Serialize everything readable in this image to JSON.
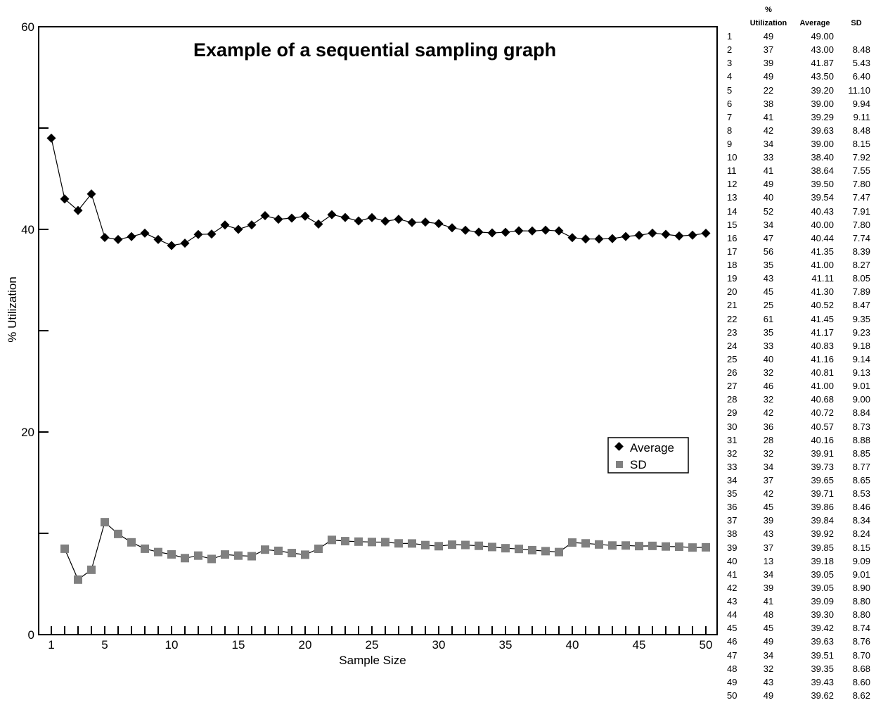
{
  "chart_data": {
    "type": "line",
    "title": "Example of a sequential sampling graph",
    "xlabel": "Sample Size",
    "ylabel": "% Utilization",
    "xlim": [
      1,
      50
    ],
    "ylim": [
      0,
      60
    ],
    "x_ticks": [
      1,
      5,
      10,
      15,
      20,
      25,
      30,
      35,
      40,
      45,
      50
    ],
    "y_ticks": [
      0,
      20,
      40,
      60
    ],
    "grid": false,
    "legend": "center-right",
    "series": [
      {
        "name": "Average",
        "marker": "diamond",
        "color": "#000000",
        "x": [
          1,
          2,
          3,
          4,
          5,
          6,
          7,
          8,
          9,
          10,
          11,
          12,
          13,
          14,
          15,
          16,
          17,
          18,
          19,
          20,
          21,
          22,
          23,
          24,
          25,
          26,
          27,
          28,
          29,
          30,
          31,
          32,
          33,
          34,
          35,
          36,
          37,
          38,
          39,
          40,
          41,
          42,
          43,
          44,
          45,
          46,
          47,
          48,
          49,
          50
        ],
        "values": [
          49.0,
          43.0,
          41.87,
          43.5,
          39.2,
          39.0,
          39.29,
          39.63,
          39.0,
          38.4,
          38.64,
          39.5,
          39.54,
          40.43,
          40.0,
          40.44,
          41.35,
          41.0,
          41.11,
          41.3,
          40.52,
          41.45,
          41.17,
          40.83,
          41.16,
          40.81,
          41.0,
          40.68,
          40.72,
          40.57,
          40.16,
          39.91,
          39.73,
          39.65,
          39.71,
          39.86,
          39.84,
          39.92,
          39.85,
          39.18,
          39.05,
          39.05,
          39.09,
          39.3,
          39.42,
          39.63,
          39.51,
          39.35,
          39.43,
          39.62
        ]
      },
      {
        "name": "SD",
        "marker": "square",
        "color": "#808080",
        "x": [
          2,
          3,
          4,
          5,
          6,
          7,
          8,
          9,
          10,
          11,
          12,
          13,
          14,
          15,
          16,
          17,
          18,
          19,
          20,
          21,
          22,
          23,
          24,
          25,
          26,
          27,
          28,
          29,
          30,
          31,
          32,
          33,
          34,
          35,
          36,
          37,
          38,
          39,
          40,
          41,
          42,
          43,
          44,
          45,
          46,
          47,
          48,
          49,
          50
        ],
        "values": [
          8.48,
          5.43,
          6.4,
          11.1,
          9.94,
          9.11,
          8.48,
          8.15,
          7.92,
          7.55,
          7.8,
          7.47,
          7.91,
          7.8,
          7.74,
          8.39,
          8.27,
          8.05,
          7.89,
          8.47,
          9.35,
          9.23,
          9.18,
          9.14,
          9.13,
          9.01,
          9.0,
          8.84,
          8.73,
          8.88,
          8.85,
          8.77,
          8.65,
          8.53,
          8.46,
          8.34,
          8.24,
          8.15,
          9.09,
          9.01,
          8.9,
          8.8,
          8.8,
          8.74,
          8.76,
          8.7,
          8.68,
          8.6,
          8.62
        ]
      }
    ]
  },
  "table": {
    "headers": {
      "n": "",
      "utilization_top": "%",
      "utilization": "Utilization",
      "average": "Average",
      "sd": "SD"
    },
    "rows": [
      {
        "n": "1",
        "u": "49",
        "avg": "49.00",
        "sd": ""
      },
      {
        "n": "2",
        "u": "37",
        "avg": "43.00",
        "sd": "8.48"
      },
      {
        "n": "3",
        "u": "39",
        "avg": "41.87",
        "sd": "5.43"
      },
      {
        "n": "4",
        "u": "49",
        "avg": "43.50",
        "sd": "6.40"
      },
      {
        "n": "5",
        "u": "22",
        "avg": "39.20",
        "sd": "11.10"
      },
      {
        "n": "6",
        "u": "38",
        "avg": "39.00",
        "sd": "9.94"
      },
      {
        "n": "7",
        "u": "41",
        "avg": "39.29",
        "sd": "9.11"
      },
      {
        "n": "8",
        "u": "42",
        "avg": "39.63",
        "sd": "8.48"
      },
      {
        "n": "9",
        "u": "34",
        "avg": "39.00",
        "sd": "8.15"
      },
      {
        "n": "10",
        "u": "33",
        "avg": "38.40",
        "sd": "7.92"
      },
      {
        "n": "11",
        "u": "41",
        "avg": "38.64",
        "sd": "7.55"
      },
      {
        "n": "12",
        "u": "49",
        "avg": "39.50",
        "sd": "7.80"
      },
      {
        "n": "13",
        "u": "40",
        "avg": "39.54",
        "sd": "7.47"
      },
      {
        "n": "14",
        "u": "52",
        "avg": "40.43",
        "sd": "7.91"
      },
      {
        "n": "15",
        "u": "34",
        "avg": "40.00",
        "sd": "7.80"
      },
      {
        "n": "16",
        "u": "47",
        "avg": "40.44",
        "sd": "7.74"
      },
      {
        "n": "17",
        "u": "56",
        "avg": "41.35",
        "sd": "8.39"
      },
      {
        "n": "18",
        "u": "35",
        "avg": "41.00",
        "sd": "8.27"
      },
      {
        "n": "19",
        "u": "43",
        "avg": "41.11",
        "sd": "8.05"
      },
      {
        "n": "20",
        "u": "45",
        "avg": "41.30",
        "sd": "7.89"
      },
      {
        "n": "21",
        "u": "25",
        "avg": "40.52",
        "sd": "8.47"
      },
      {
        "n": "22",
        "u": "61",
        "avg": "41.45",
        "sd": "9.35"
      },
      {
        "n": "23",
        "u": "35",
        "avg": "41.17",
        "sd": "9.23"
      },
      {
        "n": "24",
        "u": "33",
        "avg": "40.83",
        "sd": "9.18"
      },
      {
        "n": "25",
        "u": "40",
        "avg": "41.16",
        "sd": "9.14"
      },
      {
        "n": "26",
        "u": "32",
        "avg": "40.81",
        "sd": "9.13"
      },
      {
        "n": "27",
        "u": "46",
        "avg": "41.00",
        "sd": "9.01"
      },
      {
        "n": "28",
        "u": "32",
        "avg": "40.68",
        "sd": "9.00"
      },
      {
        "n": "29",
        "u": "42",
        "avg": "40.72",
        "sd": "8.84"
      },
      {
        "n": "30",
        "u": "36",
        "avg": "40.57",
        "sd": "8.73"
      },
      {
        "n": "31",
        "u": "28",
        "avg": "40.16",
        "sd": "8.88"
      },
      {
        "n": "32",
        "u": "32",
        "avg": "39.91",
        "sd": "8.85"
      },
      {
        "n": "33",
        "u": "34",
        "avg": "39.73",
        "sd": "8.77"
      },
      {
        "n": "34",
        "u": "37",
        "avg": "39.65",
        "sd": "8.65"
      },
      {
        "n": "35",
        "u": "42",
        "avg": "39.71",
        "sd": "8.53"
      },
      {
        "n": "36",
        "u": "45",
        "avg": "39.86",
        "sd": "8.46"
      },
      {
        "n": "37",
        "u": "39",
        "avg": "39.84",
        "sd": "8.34"
      },
      {
        "n": "38",
        "u": "43",
        "avg": "39.92",
        "sd": "8.24"
      },
      {
        "n": "39",
        "u": "37",
        "avg": "39.85",
        "sd": "8.15"
      },
      {
        "n": "40",
        "u": "13",
        "avg": "39.18",
        "sd": "9.09"
      },
      {
        "n": "41",
        "u": "34",
        "avg": "39.05",
        "sd": "9.01"
      },
      {
        "n": "42",
        "u": "39",
        "avg": "39.05",
        "sd": "8.90"
      },
      {
        "n": "43",
        "u": "41",
        "avg": "39.09",
        "sd": "8.80"
      },
      {
        "n": "44",
        "u": "48",
        "avg": "39.30",
        "sd": "8.80"
      },
      {
        "n": "45",
        "u": "45",
        "avg": "39.42",
        "sd": "8.74"
      },
      {
        "n": "46",
        "u": "49",
        "avg": "39.63",
        "sd": "8.76"
      },
      {
        "n": "47",
        "u": "34",
        "avg": "39.51",
        "sd": "8.70"
      },
      {
        "n": "48",
        "u": "32",
        "avg": "39.35",
        "sd": "8.68"
      },
      {
        "n": "49",
        "u": "43",
        "avg": "39.43",
        "sd": "8.60"
      },
      {
        "n": "50",
        "u": "49",
        "avg": "39.62",
        "sd": "8.62"
      }
    ]
  }
}
